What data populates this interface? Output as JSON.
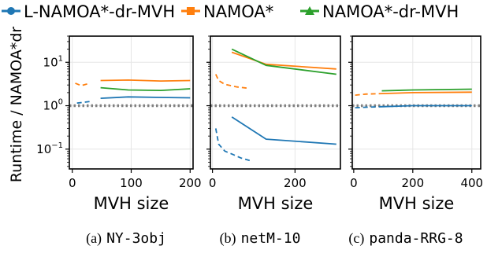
{
  "legend": {
    "placement": "top",
    "entries": [
      {
        "label": "L-NAMOA*-dr-MVH",
        "color": "#1f77b4",
        "marker": "circle"
      },
      {
        "label": "NAMOA*",
        "color": "#ff7f0e",
        "marker": "square"
      },
      {
        "label": "NAMOA*-dr-MVH",
        "color": "#2ca02c",
        "marker": "triangle"
      }
    ]
  },
  "ylabel": "Runtime / NAMOA*dr",
  "reference_line": {
    "y": 1,
    "style": "dotted",
    "color": "#808080"
  },
  "captions": [
    {
      "prefix": "(a)",
      "name": "NY-3obj"
    },
    {
      "prefix": "(b)",
      "name": "netM-10"
    },
    {
      "prefix": "(c)",
      "name": "panda-RRG-8"
    }
  ],
  "chart_data": [
    {
      "type": "line",
      "yscale": "log",
      "ylim": [
        0.035,
        40
      ],
      "yticks": [
        0.1,
        1,
        10
      ],
      "ytick_labels": [
        "10",
        "10",
        "10"
      ],
      "ytick_exponents": [
        "−1",
        "0",
        "1"
      ],
      "xlim": [
        -5,
        205
      ],
      "xticks": [
        0,
        100,
        200
      ],
      "xtick_labels": [
        "0",
        "100",
        "200"
      ],
      "xlabel": "MVH size",
      "grid": true,
      "series": [
        {
          "name": "L-NAMOA*-dr-MVH",
          "color": "#1f77b4",
          "style": "dashed",
          "x": [
            8,
            30
          ],
          "y": [
            1.15,
            1.25
          ]
        },
        {
          "name": "L-NAMOA*-dr-MVH",
          "color": "#1f77b4",
          "style": "solid",
          "x": [
            48,
            95,
            150,
            200
          ],
          "y": [
            1.48,
            1.6,
            1.55,
            1.52
          ]
        },
        {
          "name": "NAMOA*",
          "color": "#ff7f0e",
          "style": "dashed",
          "x": [
            5,
            15,
            30
          ],
          "y": [
            3.3,
            2.9,
            3.3
          ]
        },
        {
          "name": "NAMOA*",
          "color": "#ff7f0e",
          "style": "solid",
          "x": [
            48,
            95,
            150,
            200
          ],
          "y": [
            3.8,
            3.9,
            3.7,
            3.8
          ]
        },
        {
          "name": "NAMOA*-dr-MVH",
          "color": "#2ca02c",
          "style": "solid",
          "x": [
            48,
            95,
            150,
            200
          ],
          "y": [
            2.6,
            2.3,
            2.25,
            2.45
          ]
        }
      ]
    },
    {
      "type": "line",
      "yscale": "log",
      "ylim": [
        0.035,
        40
      ],
      "xlim": [
        -5,
        310
      ],
      "xticks": [
        0,
        200
      ],
      "xtick_labels": [
        "0",
        "200"
      ],
      "xlabel": "MVH size",
      "grid": true,
      "series": [
        {
          "name": "L-NAMOA*-dr-MVH",
          "color": "#1f77b4",
          "style": "dashed",
          "x": [
            8,
            15,
            30,
            50,
            70,
            90
          ],
          "y": [
            0.3,
            0.13,
            0.09,
            0.075,
            0.062,
            0.055
          ]
        },
        {
          "name": "L-NAMOA*-dr-MVH",
          "color": "#1f77b4",
          "style": "solid",
          "x": [
            47,
            130,
            300
          ],
          "y": [
            0.55,
            0.17,
            0.13
          ]
        },
        {
          "name": "NAMOA*",
          "color": "#ff7f0e",
          "style": "dashed",
          "x": [
            8,
            15,
            30,
            60,
            90
          ],
          "y": [
            5.3,
            3.8,
            3.1,
            2.7,
            2.5
          ]
        },
        {
          "name": "NAMOA*",
          "color": "#ff7f0e",
          "style": "solid",
          "x": [
            47,
            130,
            300
          ],
          "y": [
            17,
            9,
            7
          ]
        },
        {
          "name": "NAMOA*-dr-MVH",
          "color": "#2ca02c",
          "style": "solid",
          "x": [
            47,
            130,
            300
          ],
          "y": [
            20,
            8.5,
            5.3
          ]
        }
      ]
    },
    {
      "type": "line",
      "yscale": "log",
      "ylim": [
        0.035,
        40
      ],
      "xlim": [
        -5,
        430
      ],
      "xticks": [
        0,
        200,
        400
      ],
      "xtick_labels": [
        "0",
        "200",
        "400"
      ],
      "xlabel": "MVH size",
      "grid": true,
      "series": [
        {
          "name": "L-NAMOA*-dr-MVH",
          "color": "#1f77b4",
          "style": "dashed",
          "x": [
            5,
            40,
            95
          ],
          "y": [
            0.9,
            0.92,
            0.95
          ]
        },
        {
          "name": "L-NAMOA*-dr-MVH",
          "color": "#1f77b4",
          "style": "solid",
          "x": [
            95,
            200,
            400
          ],
          "y": [
            0.95,
            1.0,
            1.0
          ]
        },
        {
          "name": "NAMOA*",
          "color": "#ff7f0e",
          "style": "dashed",
          "x": [
            5,
            40,
            95
          ],
          "y": [
            1.75,
            1.85,
            1.9
          ]
        },
        {
          "name": "NAMOA*",
          "color": "#ff7f0e",
          "style": "solid",
          "x": [
            95,
            200,
            400
          ],
          "y": [
            1.9,
            2.0,
            2.05
          ]
        },
        {
          "name": "NAMOA*-dr-MVH",
          "color": "#2ca02c",
          "style": "solid",
          "x": [
            95,
            200,
            400
          ],
          "y": [
            2.2,
            2.3,
            2.4
          ]
        }
      ]
    }
  ]
}
